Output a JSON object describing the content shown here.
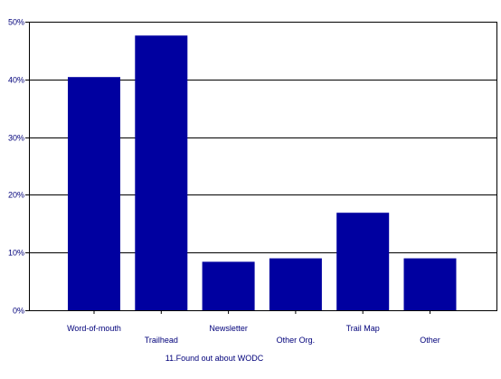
{
  "chart_data": {
    "type": "bar",
    "title": "",
    "xlabel": "11.Found out about WODC",
    "ylabel": "",
    "categories": [
      "Word-of-mouth",
      "Trailhead",
      "Newsletter",
      "Other Org.",
      "Trail Map",
      "Other"
    ],
    "values": [
      40.4,
      47.6,
      8.4,
      9.0,
      16.9,
      9.0
    ],
    "ylim": [
      0,
      50
    ],
    "y_ticks": [
      {
        "value": 0,
        "label": "0%"
      },
      {
        "value": 10,
        "label": "10%"
      },
      {
        "value": 20,
        "label": "20%"
      },
      {
        "value": 30,
        "label": "30%"
      },
      {
        "value": 40,
        "label": "40%"
      },
      {
        "value": 50,
        "label": "50%"
      }
    ],
    "grid": true,
    "legend": "none",
    "colors": {
      "bar": "#0000a0",
      "axis": "#000000",
      "text": "#00007a"
    }
  }
}
